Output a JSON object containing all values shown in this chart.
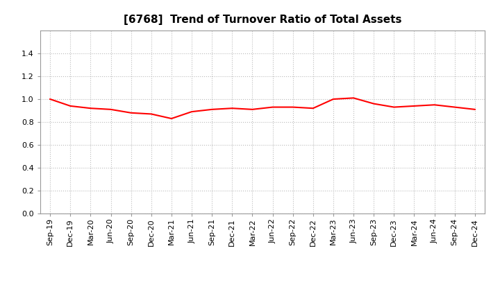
{
  "title": "[6768]  Trend of Turnover Ratio of Total Assets",
  "x_labels": [
    "Sep-19",
    "Dec-19",
    "Mar-20",
    "Jun-20",
    "Sep-20",
    "Dec-20",
    "Mar-21",
    "Jun-21",
    "Sep-21",
    "Dec-21",
    "Mar-22",
    "Jun-22",
    "Sep-22",
    "Dec-22",
    "Mar-23",
    "Jun-23",
    "Sep-23",
    "Dec-23",
    "Mar-24",
    "Jun-24",
    "Sep-24",
    "Dec-24"
  ],
  "values": [
    1.0,
    0.94,
    0.92,
    0.91,
    0.88,
    0.87,
    0.83,
    0.89,
    0.91,
    0.92,
    0.91,
    0.93,
    0.93,
    0.92,
    1.0,
    1.01,
    0.96,
    0.93,
    0.94,
    0.95,
    0.93,
    0.91
  ],
  "line_color": "#FF0000",
  "line_width": 1.5,
  "ylim": [
    0.0,
    1.6
  ],
  "yticks": [
    0.0,
    0.2,
    0.4,
    0.6,
    0.8,
    1.0,
    1.2,
    1.4
  ],
  "grid_color": "#bbbbbb",
  "grid_style": "dotted",
  "bg_color": "#ffffff",
  "title_fontsize": 11,
  "tick_fontsize": 8
}
